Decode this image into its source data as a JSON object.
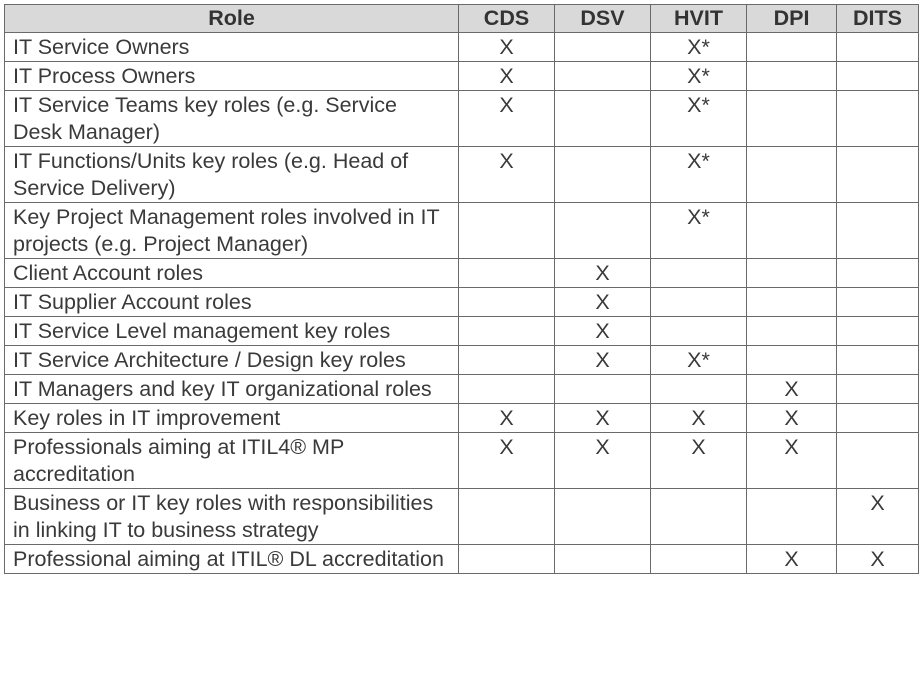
{
  "columns": [
    "Role",
    "CDS",
    "DSV",
    "HVIT",
    "DPI",
    "DITS"
  ],
  "rows": [
    {
      "role": "IT Service Owners",
      "marks": [
        "X",
        "",
        "X*",
        "",
        ""
      ]
    },
    {
      "role": "IT Process Owners",
      "marks": [
        "X",
        "",
        "X*",
        "",
        ""
      ]
    },
    {
      "role": "IT Service Teams key roles (e.g. Service Desk Manager)",
      "marks": [
        "X",
        "",
        "X*",
        "",
        ""
      ]
    },
    {
      "role": "IT Functions/Units key roles (e.g. Head of Service Delivery)",
      "marks": [
        "X",
        "",
        "X*",
        "",
        ""
      ]
    },
    {
      "role": "Key Project Management roles involved in IT projects (e.g. Project Manager)",
      "marks": [
        "",
        "",
        "X*",
        "",
        ""
      ]
    },
    {
      "role": "Client Account roles",
      "marks": [
        "",
        "X",
        "",
        "",
        ""
      ]
    },
    {
      "role": "IT Supplier Account roles",
      "marks": [
        "",
        "X",
        "",
        "",
        ""
      ]
    },
    {
      "role": "IT Service Level management key roles",
      "marks": [
        "",
        "X",
        "",
        "",
        ""
      ]
    },
    {
      "role": "IT Service Architecture / Design key roles",
      "marks": [
        "",
        "X",
        "X*",
        "",
        ""
      ]
    },
    {
      "role": "IT Managers and key IT organizational roles",
      "marks": [
        "",
        "",
        "",
        "X",
        ""
      ]
    },
    {
      "role": "Key roles in IT improvement",
      "marks": [
        "X",
        "X",
        "X",
        "X",
        ""
      ]
    },
    {
      "role": "Professionals aiming at ITIL4® MP accreditation",
      "marks": [
        "X",
        "X",
        "X",
        "X",
        ""
      ]
    },
    {
      "role": "Business or IT key roles with responsibilities in linking IT to business strategy",
      "marks": [
        "",
        "",
        "",
        "",
        "X"
      ]
    },
    {
      "role": "Professional aiming at ITIL® DL accreditation",
      "marks": [
        "",
        "",
        "",
        "X",
        "X"
      ]
    }
  ]
}
